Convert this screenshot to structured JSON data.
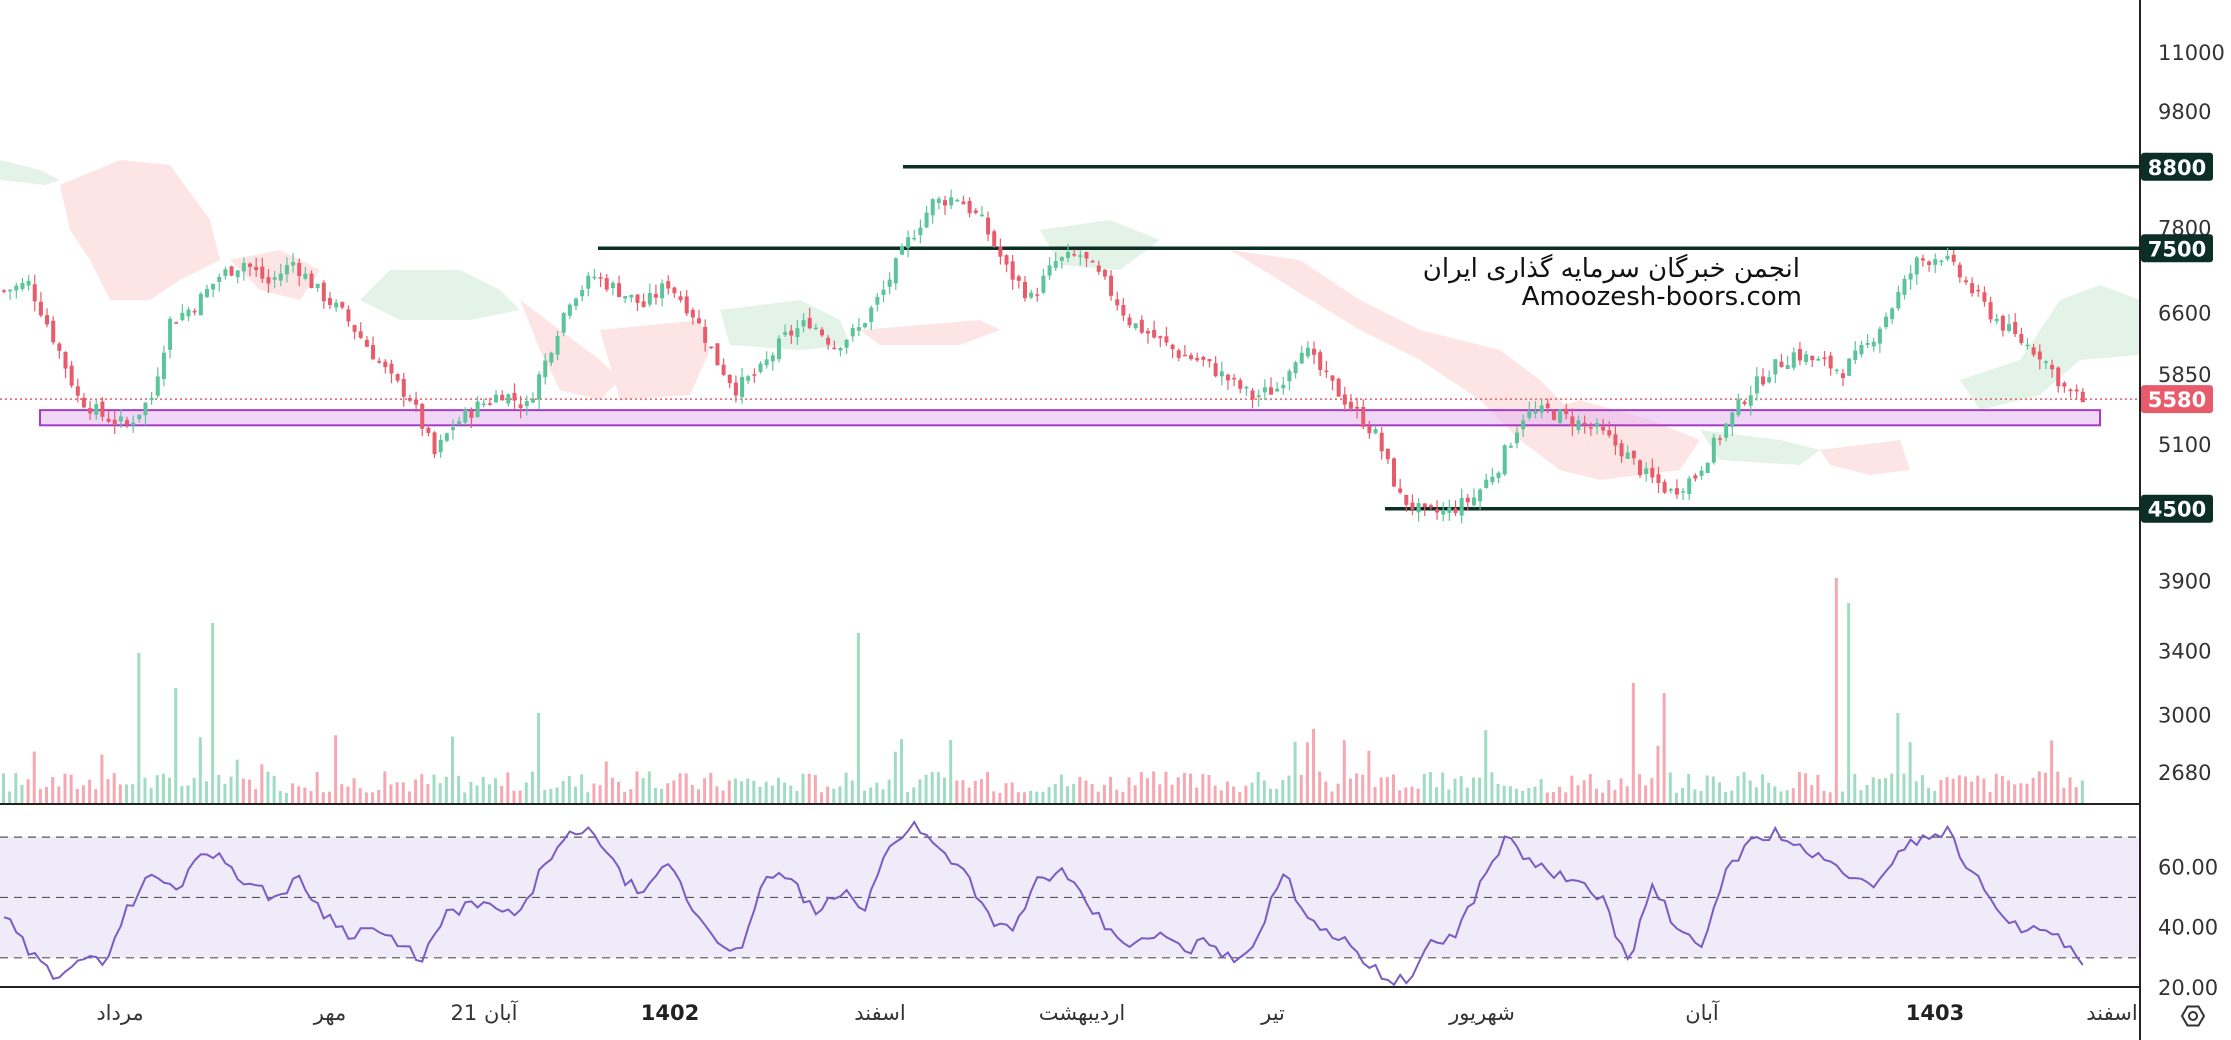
{
  "watermark": {
    "line1": "انجمن خبرگان سرمایه گذاری ایران",
    "line2": "Amoozesh-boors.com"
  },
  "colors": {
    "up": "#5cc49a",
    "down": "#e85b6a",
    "line": "#0b2e25",
    "zone_fill": "#e5b6f0",
    "zone_stroke": "#a53cc4",
    "rsi_line": "#7a5cc4",
    "rsi_band": "#efebf8",
    "cloud_red": "#fde5e5",
    "cloud_green": "#e4f3e8",
    "last_price": "#e85b6a"
  },
  "chart_data": {
    "type": "candlestick",
    "price_axis": {
      "scale": "log",
      "ticks": [
        11000,
        9800,
        7800,
        6600,
        5850,
        5100,
        4500,
        3900,
        3400,
        3000,
        2680
      ]
    },
    "time_axis": {
      "labels": [
        "مرداد",
        "مهر",
        "21 آبان",
        "1402",
        "اسفند",
        "اردیبهشت",
        "تیر",
        "شهریور",
        "آبان",
        "1403",
        "اسفند"
      ],
      "bold_labels": [
        "1402",
        "1403"
      ]
    },
    "levels": [
      {
        "label": "8800",
        "value": 8800
      },
      {
        "label": "7500",
        "value": 7500
      },
      {
        "label": "4500",
        "value": 4500
      }
    ],
    "support_zone": {
      "low": 5300,
      "high": 5460
    },
    "last_price": {
      "label": "5580",
      "value": 5580
    },
    "candles_close_path": [
      [
        0,
        6900
      ],
      [
        4,
        7000
      ],
      [
        8,
        6300
      ],
      [
        12,
        5600
      ],
      [
        16,
        5400
      ],
      [
        20,
        5300
      ],
      [
        24,
        5600
      ],
      [
        27,
        6500
      ],
      [
        31,
        6700
      ],
      [
        35,
        7100
      ],
      [
        39,
        7300
      ],
      [
        43,
        7000
      ],
      [
        47,
        7300
      ],
      [
        51,
        6900
      ],
      [
        55,
        6600
      ],
      [
        59,
        6200
      ],
      [
        63,
        5800
      ],
      [
        66,
        5600
      ],
      [
        70,
        5000
      ],
      [
        73,
        5300
      ],
      [
        77,
        5500
      ],
      [
        81,
        5650
      ],
      [
        85,
        5500
      ],
      [
        88,
        6000
      ],
      [
        92,
        6800
      ],
      [
        96,
        7100
      ],
      [
        100,
        6900
      ],
      [
        104,
        6700
      ],
      [
        108,
        7000
      ],
      [
        112,
        6600
      ],
      [
        116,
        6000
      ],
      [
        119,
        5700
      ],
      [
        123,
        5900
      ],
      [
        127,
        6300
      ],
      [
        131,
        6500
      ],
      [
        135,
        6200
      ],
      [
        139,
        6400
      ],
      [
        143,
        6900
      ],
      [
        147,
        7600
      ],
      [
        151,
        8200
      ],
      [
        155,
        8300
      ],
      [
        159,
        7900
      ],
      [
        163,
        7200
      ],
      [
        167,
        6800
      ],
      [
        171,
        7300
      ],
      [
        175,
        7400
      ],
      [
        179,
        7000
      ],
      [
        183,
        6500
      ],
      [
        187,
        6300
      ],
      [
        191,
        6100
      ],
      [
        195,
        6000
      ],
      [
        199,
        5800
      ],
      [
        203,
        5600
      ],
      [
        207,
        5700
      ],
      [
        211,
        6200
      ],
      [
        215,
        5800
      ],
      [
        219,
        5500
      ],
      [
        223,
        5200
      ],
      [
        227,
        4600
      ],
      [
        231,
        4450
      ],
      [
        235,
        4480
      ],
      [
        239,
        4600
      ],
      [
        243,
        4900
      ],
      [
        247,
        5400
      ],
      [
        251,
        5450
      ],
      [
        255,
        5350
      ],
      [
        259,
        5250
      ],
      [
        263,
        5050
      ],
      [
        267,
        4800
      ],
      [
        271,
        4650
      ],
      [
        275,
        4800
      ],
      [
        279,
        5200
      ],
      [
        283,
        5600
      ],
      [
        287,
        5900
      ],
      [
        291,
        6100
      ],
      [
        295,
        6000
      ],
      [
        299,
        5900
      ],
      [
        303,
        6200
      ],
      [
        307,
        6700
      ],
      [
        311,
        7300
      ],
      [
        315,
        7400
      ],
      [
        319,
        7000
      ],
      [
        323,
        6600
      ],
      [
        327,
        6300
      ],
      [
        331,
        6100
      ],
      [
        335,
        5700
      ],
      [
        338,
        5560
      ]
    ],
    "rsi": {
      "range": [
        20,
        75
      ],
      "ticks": [
        60.0,
        40.0,
        20.0
      ],
      "levels": [
        70,
        50,
        30
      ],
      "path": [
        [
          0,
          44
        ],
        [
          4,
          32
        ],
        [
          8,
          24
        ],
        [
          12,
          30
        ],
        [
          16,
          28
        ],
        [
          20,
          46
        ],
        [
          24,
          58
        ],
        [
          28,
          52
        ],
        [
          32,
          66
        ],
        [
          36,
          62
        ],
        [
          40,
          54
        ],
        [
          44,
          50
        ],
        [
          48,
          56
        ],
        [
          52,
          45
        ],
        [
          56,
          38
        ],
        [
          60,
          40
        ],
        [
          64,
          34
        ],
        [
          68,
          30
        ],
        [
          72,
          44
        ],
        [
          76,
          48
        ],
        [
          80,
          46
        ],
        [
          84,
          44
        ],
        [
          88,
          62
        ],
        [
          92,
          70
        ],
        [
          96,
          72
        ],
        [
          100,
          58
        ],
        [
          104,
          50
        ],
        [
          108,
          62
        ],
        [
          112,
          46
        ],
        [
          116,
          36
        ],
        [
          120,
          32
        ],
        [
          124,
          58
        ],
        [
          128,
          56
        ],
        [
          132,
          44
        ],
        [
          136,
          52
        ],
        [
          140,
          46
        ],
        [
          144,
          68
        ],
        [
          148,
          74
        ],
        [
          152,
          66
        ],
        [
          156,
          60
        ],
        [
          160,
          44
        ],
        [
          164,
          38
        ],
        [
          168,
          56
        ],
        [
          172,
          58
        ],
        [
          176,
          48
        ],
        [
          180,
          38
        ],
        [
          184,
          34
        ],
        [
          188,
          38
        ],
        [
          192,
          32
        ],
        [
          196,
          36
        ],
        [
          200,
          28
        ],
        [
          204,
          38
        ],
        [
          208,
          58
        ],
        [
          212,
          44
        ],
        [
          216,
          38
        ],
        [
          220,
          32
        ],
        [
          224,
          24
        ],
        [
          228,
          22
        ],
        [
          232,
          34
        ],
        [
          236,
          38
        ],
        [
          240,
          54
        ],
        [
          244,
          70
        ],
        [
          248,
          62
        ],
        [
          252,
          58
        ],
        [
          256,
          54
        ],
        [
          260,
          50
        ],
        [
          264,
          28
        ],
        [
          268,
          54
        ],
        [
          272,
          40
        ],
        [
          276,
          32
        ],
        [
          280,
          60
        ],
        [
          284,
          68
        ],
        [
          288,
          72
        ],
        [
          292,
          66
        ],
        [
          296,
          62
        ],
        [
          300,
          58
        ],
        [
          304,
          52
        ],
        [
          308,
          66
        ],
        [
          312,
          70
        ],
        [
          316,
          72
        ],
        [
          320,
          58
        ],
        [
          324,
          48
        ],
        [
          328,
          38
        ],
        [
          332,
          40
        ],
        [
          336,
          32
        ],
        [
          338,
          28
        ]
      ]
    },
    "volume": {
      "note_spikes_at": [
        22,
        34,
        139,
        298,
        300
      ]
    }
  }
}
